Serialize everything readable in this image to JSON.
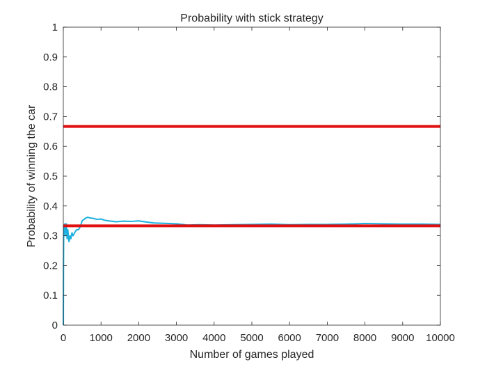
{
  "chart_data": {
    "type": "line",
    "title": "Probability with stick strategy",
    "xlabel": "Number of games played",
    "ylabel": "Probability of winning the car",
    "xlim": [
      0,
      10000
    ],
    "ylim": [
      0,
      1
    ],
    "xticks": [
      0,
      1000,
      2000,
      3000,
      4000,
      5000,
      6000,
      7000,
      8000,
      9000,
      10000
    ],
    "yticks": [
      0,
      0.1,
      0.2,
      0.3,
      0.4,
      0.5,
      0.6,
      0.7,
      0.8,
      0.9,
      1
    ],
    "ytick_labels": [
      "0",
      "0.1",
      "0.2",
      "0.3",
      "0.4",
      "0.5",
      "0.6",
      "0.7",
      "0.8",
      "0.9",
      "1"
    ],
    "grid": false,
    "series": [
      {
        "role": "simulation",
        "color": "#1bb0de",
        "x": [
          1,
          5,
          10,
          15,
          20,
          30,
          40,
          50,
          60,
          70,
          80,
          100,
          120,
          150,
          180,
          200,
          230,
          260,
          300,
          350,
          400,
          450,
          500,
          550,
          600,
          650,
          700,
          800,
          900,
          1000,
          1100,
          1200,
          1400,
          1600,
          1800,
          2000,
          2200,
          2400,
          2600,
          2800,
          3000,
          3300,
          3600,
          4000,
          4500,
          5000,
          5500,
          6000,
          6500,
          7000,
          7500,
          8000,
          8500,
          9000,
          9500,
          10000
        ],
        "y": [
          0,
          0.2,
          0.3,
          0.33,
          0.31,
          0.33,
          0.34,
          0.3,
          0.33,
          0.32,
          0.34,
          0.29,
          0.32,
          0.28,
          0.3,
          0.29,
          0.31,
          0.3,
          0.31,
          0.32,
          0.32,
          0.33,
          0.35,
          0.355,
          0.36,
          0.362,
          0.36,
          0.358,
          0.355,
          0.356,
          0.352,
          0.35,
          0.347,
          0.349,
          0.348,
          0.35,
          0.346,
          0.343,
          0.342,
          0.341,
          0.34,
          0.336,
          0.337,
          0.336,
          0.337,
          0.338,
          0.339,
          0.337,
          0.338,
          0.338,
          0.339,
          0.341,
          0.34,
          0.339,
          0.339,
          0.338
        ]
      },
      {
        "role": "reference",
        "color": "#e01010",
        "x": [
          0,
          10000
        ],
        "y": [
          0.6667,
          0.6667
        ]
      },
      {
        "role": "reference",
        "color": "#e01010",
        "x": [
          0,
          10000
        ],
        "y": [
          0.3333,
          0.3333
        ]
      }
    ]
  }
}
